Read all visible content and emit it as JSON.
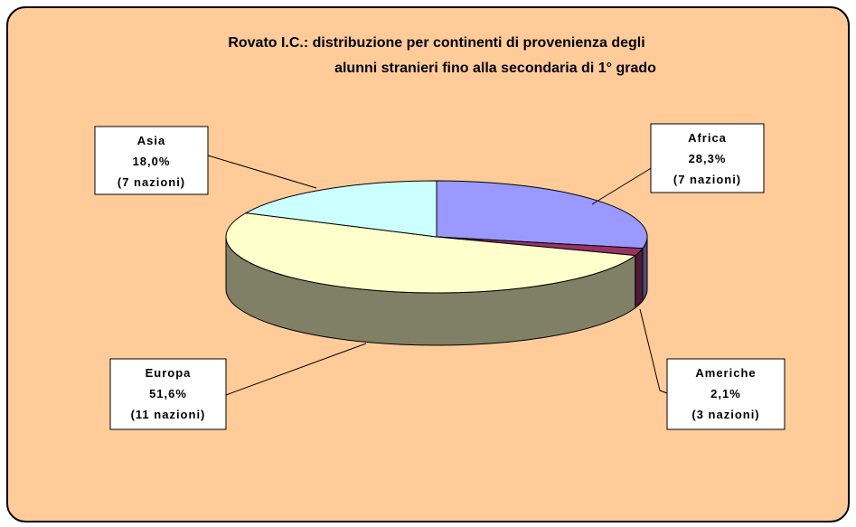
{
  "chart_data": {
    "type": "pie",
    "title": [
      "Rovato I.C.: distribuzione per continenti di provenienza  degli",
      "alunni stranieri fino alla secondaria di 1° grado"
    ],
    "categories": [
      "Africa",
      "Americhe",
      "Europa",
      "Asia"
    ],
    "values": [
      28.3,
      2.1,
      51.6,
      18.0
    ],
    "value_labels": [
      "28,3%",
      "2,1%",
      "51,6%",
      "18,0%"
    ],
    "nations": [
      "(7 nazioni)",
      "(3 nazioni)",
      "(11 nazioni)",
      "(7 nazioni)"
    ],
    "colors": [
      "#9999ff",
      "#993366",
      "#ffffcc",
      "#ccffff"
    ]
  }
}
